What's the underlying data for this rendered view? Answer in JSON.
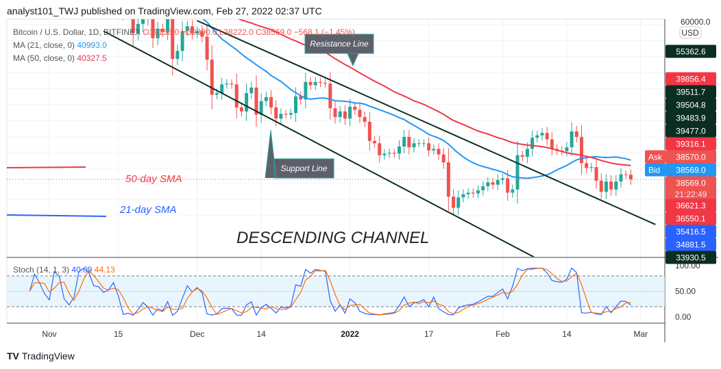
{
  "header": {
    "title": "analyst101_TWJ published on TradingView.com, Feb 27, 2022 02:37 UTC"
  },
  "legend": {
    "symbol": "Bitcoin / U.S. Dollar, 1D, BITFINEX",
    "ohlc": "O39158.0 H39300.0 L38222.0 C38569.0 −568.1 (−1.45%)",
    "ma21_label": "MA (21, close, 0)",
    "ma21_value": "40993.0",
    "ma50_label": "MA (50, close, 0)",
    "ma50_value": "40327.5"
  },
  "colors": {
    "up": "#26a69a",
    "down": "#ef5350",
    "ma21": "#2196f3",
    "ma50": "#f23645",
    "channel": "#0b2e22",
    "stoch_k": "#2962ff",
    "stoch_d": "#ff6d00"
  },
  "price_axis": {
    "top_label": "60000.0",
    "currency": "USD",
    "labels": [
      {
        "text": "55362.6",
        "color": "#0b2e22"
      },
      {
        "text": "39856.4",
        "color": "#f23645"
      },
      {
        "text": "39511.7",
        "color": "#0b2e22"
      },
      {
        "text": "39504.8",
        "color": "#0b2e22"
      },
      {
        "text": "39483.9",
        "color": "#0b2e22"
      },
      {
        "text": "39477.0",
        "color": "#0b2e22"
      },
      {
        "text": "39316.1",
        "color": "#f23645"
      },
      {
        "text": "38570.0",
        "color": "#ef5350",
        "tag": "Ask"
      },
      {
        "text": "38569.0",
        "color": "#2196f3",
        "tag": "Bid"
      },
      {
        "text": "38569.0",
        "color": "#ef5350",
        "sub": "21:22:49"
      },
      {
        "text": "36621.3",
        "color": "#f23645"
      },
      {
        "text": "36550.1",
        "color": "#f23645"
      },
      {
        "text": "35416.5",
        "color": "#2962ff"
      },
      {
        "text": "34881.5",
        "color": "#2962ff"
      },
      {
        "text": "33930.5",
        "color": "#0b2e22"
      }
    ]
  },
  "stoch": {
    "label": "Stoch (14, 1, 3)",
    "k_value": "40.09",
    "d_value": "44.13",
    "ticks": [
      "100.00",
      "50.00",
      "0.00"
    ]
  },
  "x_axis": {
    "ticks": [
      {
        "label": "Nov",
        "date": "2021-11-01"
      },
      {
        "label": "15",
        "date": "2021-11-15"
      },
      {
        "label": "Dec",
        "date": "2021-12-01"
      },
      {
        "label": "14",
        "date": "2021-12-14"
      },
      {
        "label": "2022",
        "date": "2022-01-01"
      },
      {
        "label": "17",
        "date": "2022-01-17"
      },
      {
        "label": "Feb",
        "date": "2022-02-01"
      },
      {
        "label": "14",
        "date": "2022-02-14"
      },
      {
        "label": "Mar",
        "date": "2022-03-01"
      }
    ]
  },
  "annotations": {
    "resistance": "Resistance Line",
    "support": "Support Line",
    "sma50": "50-day SMA",
    "sma21": "21-day SMA",
    "channel": "DESCENDING CHANNEL"
  },
  "footer": {
    "brand": "TradingView"
  },
  "chart_data": {
    "type": "candlestick",
    "symbol": "BTCUSD",
    "interval": "1D",
    "start_date": "2021-10-28",
    "closes": [
      60600,
      62200,
      61800,
      61300,
      61000,
      63200,
      62900,
      61400,
      61000,
      61500,
      63300,
      67500,
      66900,
      64900,
      64900,
      64100,
      64400,
      65500,
      63600,
      60100,
      60300,
      56900,
      58100,
      59700,
      58700,
      56300,
      57500,
      57100,
      58900,
      53700,
      54700,
      57200,
      57800,
      56900,
      57200,
      56500,
      53600,
      49200,
      49400,
      50500,
      50600,
      50500,
      47600,
      47100,
      49400,
      50100,
      46700,
      48400,
      48900,
      47600,
      46200,
      46800,
      46700,
      46900,
      49000,
      48600,
      50800,
      50400,
      50800,
      50700,
      50600,
      47500,
      46400,
      47100,
      46200,
      47700,
      47300,
      46400,
      45800,
      43400,
      43100,
      41600,
      41800,
      41900,
      41800,
      42700,
      43900,
      42600,
      43100,
      43100,
      43100,
      42200,
      42400,
      41700,
      40700,
      36400,
      35000,
      36300,
      36700,
      36900,
      36800,
      37200,
      37700,
      38200,
      37900,
      38500,
      38700,
      36900,
      37300,
      41600,
      41400,
      42400,
      43800,
      44100,
      44400,
      43600,
      42400,
      42200,
      42100,
      42600,
      44600,
      43900,
      40600,
      40000,
      40100,
      38400,
      37000,
      38300,
      37300,
      38300,
      39200,
      39158,
      38569
    ],
    "ylim": [
      33000,
      60000
    ],
    "last_price": 38569.0,
    "channel_upper": [
      [
        "2021-12-01",
        58500
      ],
      [
        "2022-03-04",
        32900
      ]
    ],
    "channel_lower": [
      [
        "2021-11-12",
        57200
      ],
      [
        "2022-02-08",
        28600
      ]
    ],
    "hlines": [
      {
        "price": 40030,
        "color": "#f23645"
      },
      {
        "price": 34100,
        "color": "#2962ff"
      }
    ],
    "stoch_bands": [
      20,
      80
    ]
  }
}
